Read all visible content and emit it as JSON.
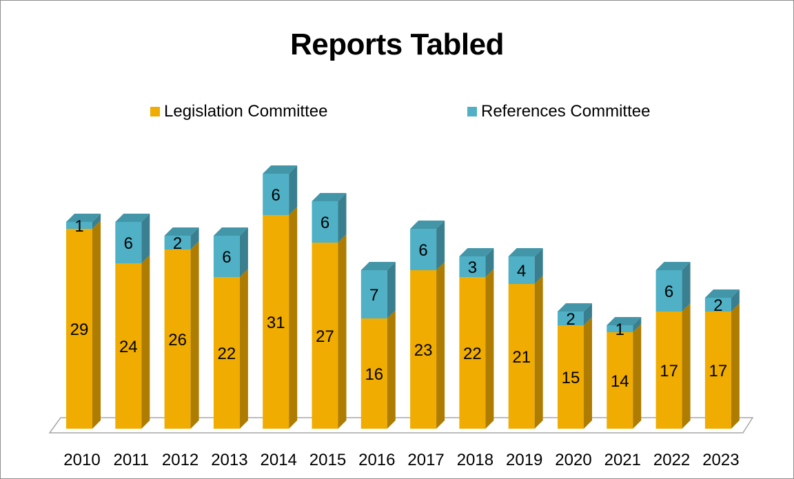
{
  "chart_data": {
    "type": "bar",
    "stacked": true,
    "title": "Reports Tabled",
    "categories": [
      "2010",
      "2011",
      "2012",
      "2013",
      "2014",
      "2015",
      "2016",
      "2017",
      "2018",
      "2019",
      "2020",
      "2021",
      "2022",
      "2023"
    ],
    "series": [
      {
        "name": "Legislation Committee",
        "color": "#f0ac00",
        "values": [
          29,
          24,
          26,
          22,
          31,
          27,
          16,
          23,
          22,
          21,
          15,
          14,
          17,
          17
        ]
      },
      {
        "name": "References Committee",
        "color": "#4fb0c6",
        "values": [
          1,
          6,
          2,
          6,
          6,
          6,
          7,
          6,
          3,
          4,
          2,
          1,
          6,
          2
        ]
      }
    ],
    "legend_position": "top",
    "grid": false,
    "three_d": true,
    "ylim": [
      0,
      38
    ]
  }
}
